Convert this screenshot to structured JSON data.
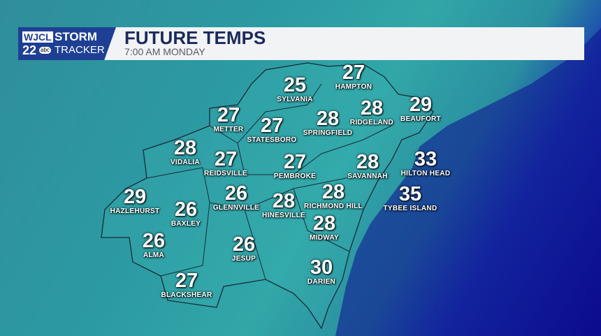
{
  "brand": {
    "station": "WJCL",
    "channel": "22",
    "network": "abc",
    "product_line1": "STORM",
    "product_line2": "TRACKER"
  },
  "header": {
    "title": "FUTURE TEMPS",
    "subtitle": "7:00 AM  MONDAY"
  },
  "colors": {
    "land": "#2e9ea4",
    "ocean": "#0a0a8a",
    "header_bg": "#f2f3f5",
    "logo_bg": "#1e3f93",
    "title": "#1b2a5a"
  },
  "cities": [
    {
      "name": "SYLVANIA",
      "temp": "25"
    },
    {
      "name": "HAMPTON",
      "temp": "27"
    },
    {
      "name": "METTER",
      "temp": "27"
    },
    {
      "name": "STATESBORO",
      "temp": "27"
    },
    {
      "name": "SPRINGFIELD",
      "temp": "28"
    },
    {
      "name": "RIDGELAND",
      "temp": "28"
    },
    {
      "name": "BEAUFORT",
      "temp": "29"
    },
    {
      "name": "VIDALIA",
      "temp": "28"
    },
    {
      "name": "REIDSVILLE",
      "temp": "27"
    },
    {
      "name": "PEMBROKE",
      "temp": "27"
    },
    {
      "name": "SAVANNAH",
      "temp": "28"
    },
    {
      "name": "HILTON HEAD",
      "temp": "33"
    },
    {
      "name": "HAZLEHURST",
      "temp": "29"
    },
    {
      "name": "BAXLEY",
      "temp": "26"
    },
    {
      "name": "GLENNVILLE",
      "temp": "26"
    },
    {
      "name": "HINESVILLE",
      "temp": "28"
    },
    {
      "name": "RICHMOND HILL",
      "temp": "28"
    },
    {
      "name": "TYBEE ISLAND",
      "temp": "35"
    },
    {
      "name": "MIDWAY",
      "temp": "28"
    },
    {
      "name": "ALMA",
      "temp": "26"
    },
    {
      "name": "JESUP",
      "temp": "26"
    },
    {
      "name": "DARIEN",
      "temp": "30"
    },
    {
      "name": "BLACKSHEAR",
      "temp": "27"
    }
  ]
}
